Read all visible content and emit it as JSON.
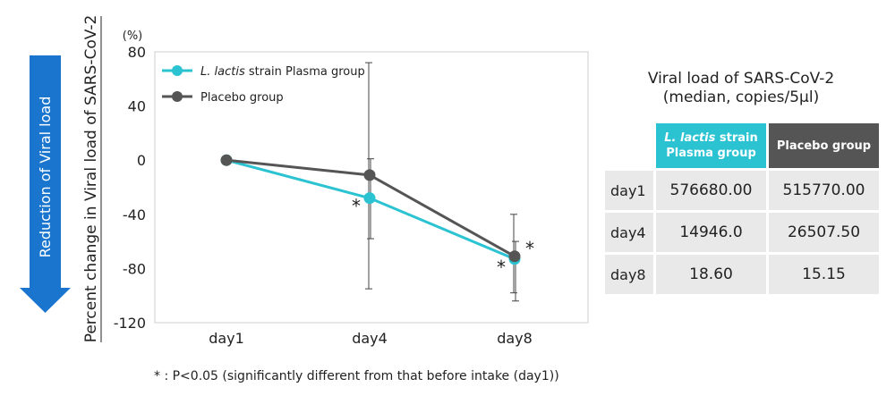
{
  "arrow_label": "Reduction of Viral load",
  "footnote": "* : P<0.05 (significantly different from that before intake (day1))",
  "colors": {
    "arrow": "#1a75cf",
    "lactis": "#2bc3d2",
    "placebo": "#555555",
    "table_cell": "#e9e9e9"
  },
  "chart_data": {
    "type": "line",
    "title": "",
    "ylabel": "Percent change in Viral load of SARS-CoV-2",
    "y_unit": "(%)",
    "xlabel": "",
    "categories": [
      "day1",
      "day4",
      "day8"
    ],
    "ylim": [
      -120,
      80
    ],
    "yticks": [
      80,
      40,
      0,
      -40,
      -80,
      -120
    ],
    "grid": false,
    "legend_position": "top-left",
    "series": [
      {
        "name_parts": [
          "L. lactis",
          " strain Plasma group"
        ],
        "name": "L. lactis strain Plasma group",
        "color": "#2bc3d2",
        "values": [
          0,
          -28,
          -73
        ],
        "error_bars": [
          null,
          [
            -95,
            72
          ],
          [
            -98,
            -40
          ]
        ],
        "significance": [
          "",
          "*",
          "*"
        ]
      },
      {
        "name": "Placebo group",
        "color": "#555555",
        "values": [
          0,
          -11,
          -71
        ],
        "error_bars": [
          null,
          [
            -58,
            1
          ],
          [
            -104,
            -60
          ]
        ],
        "significance": [
          "",
          "",
          "*"
        ]
      }
    ]
  },
  "table": {
    "title_line1": "Viral load of SARS-CoV-2",
    "title_line2": "(median, copies/5μl)",
    "header_lactis_italic": "L. lactis",
    "header_lactis_rest1": " strain",
    "header_lactis_line2": "Plasma group",
    "header_placebo": "Placebo group",
    "rows": [
      {
        "day": "day1",
        "lactis": "576680.00",
        "placebo": "515770.00"
      },
      {
        "day": "day4",
        "lactis": "14946.0",
        "placebo": "26507.50"
      },
      {
        "day": "day8",
        "lactis": "18.60",
        "placebo": "15.15"
      }
    ]
  }
}
